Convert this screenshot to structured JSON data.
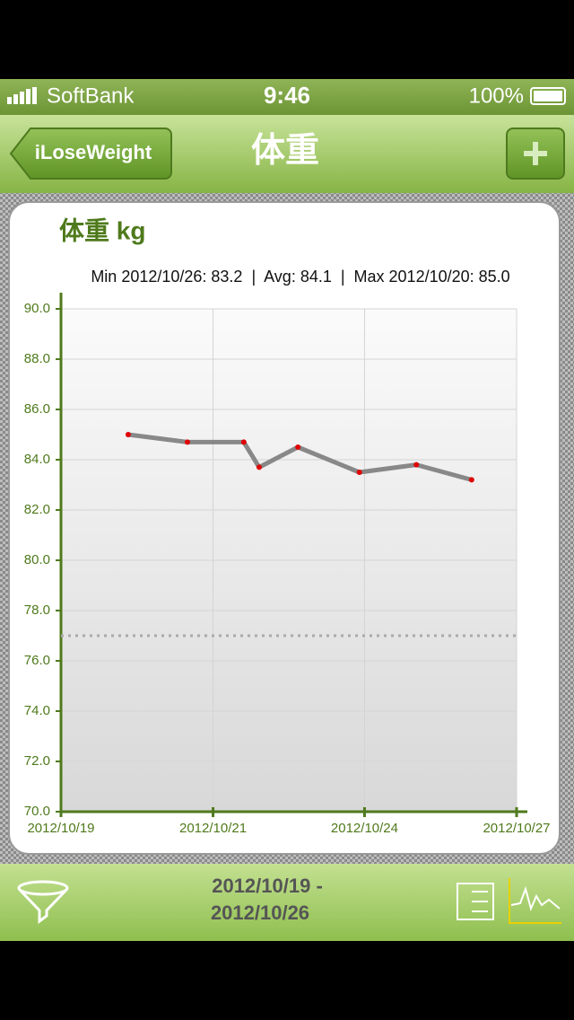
{
  "status_bar": {
    "carrier": "SoftBank",
    "time": "9:46",
    "battery": "100%"
  },
  "nav": {
    "back": "iLoseWeight",
    "title": "体重"
  },
  "chart_data": {
    "type": "line",
    "title": "体重 kg",
    "subtitle": "Min 2012/10/26: 83.2  |  Avg: 84.1  |  Max 2012/10/20: 85.0",
    "x": [
      20.18,
      21.22,
      22.21,
      22.48,
      23.16,
      24.24,
      25.24,
      26.21
    ],
    "values": [
      85.0,
      84.7,
      84.7,
      83.7,
      84.5,
      83.5,
      83.8,
      83.2
    ],
    "color": "#888888",
    "marker_color": "#e00000",
    "target": 77.0,
    "xlim": [
      19,
      27
    ],
    "xticks": [
      {
        "value": 19,
        "label": "2012/10/19"
      },
      {
        "value": 21.67,
        "label": "2012/10/21"
      },
      {
        "value": 24.33,
        "label": "2012/10/24"
      },
      {
        "value": 27,
        "label": "2012/10/27"
      }
    ],
    "ylim": [
      70,
      90
    ],
    "yticks": [
      {
        "value": 70,
        "label": "70.0"
      },
      {
        "value": 72,
        "label": "72.0"
      },
      {
        "value": 74,
        "label": "74.0"
      },
      {
        "value": 76,
        "label": "76.0"
      },
      {
        "value": 78,
        "label": "78.0"
      },
      {
        "value": 80,
        "label": "80.0"
      },
      {
        "value": 82,
        "label": "82.0"
      },
      {
        "value": 84,
        "label": "84.0"
      },
      {
        "value": 86,
        "label": "86.0"
      },
      {
        "value": 88,
        "label": "88.0"
      },
      {
        "value": 90,
        "label": "90.0"
      }
    ],
    "grid": true
  },
  "toolbar": {
    "date_range": [
      "2012/10/19 -",
      "2012/10/26"
    ]
  }
}
